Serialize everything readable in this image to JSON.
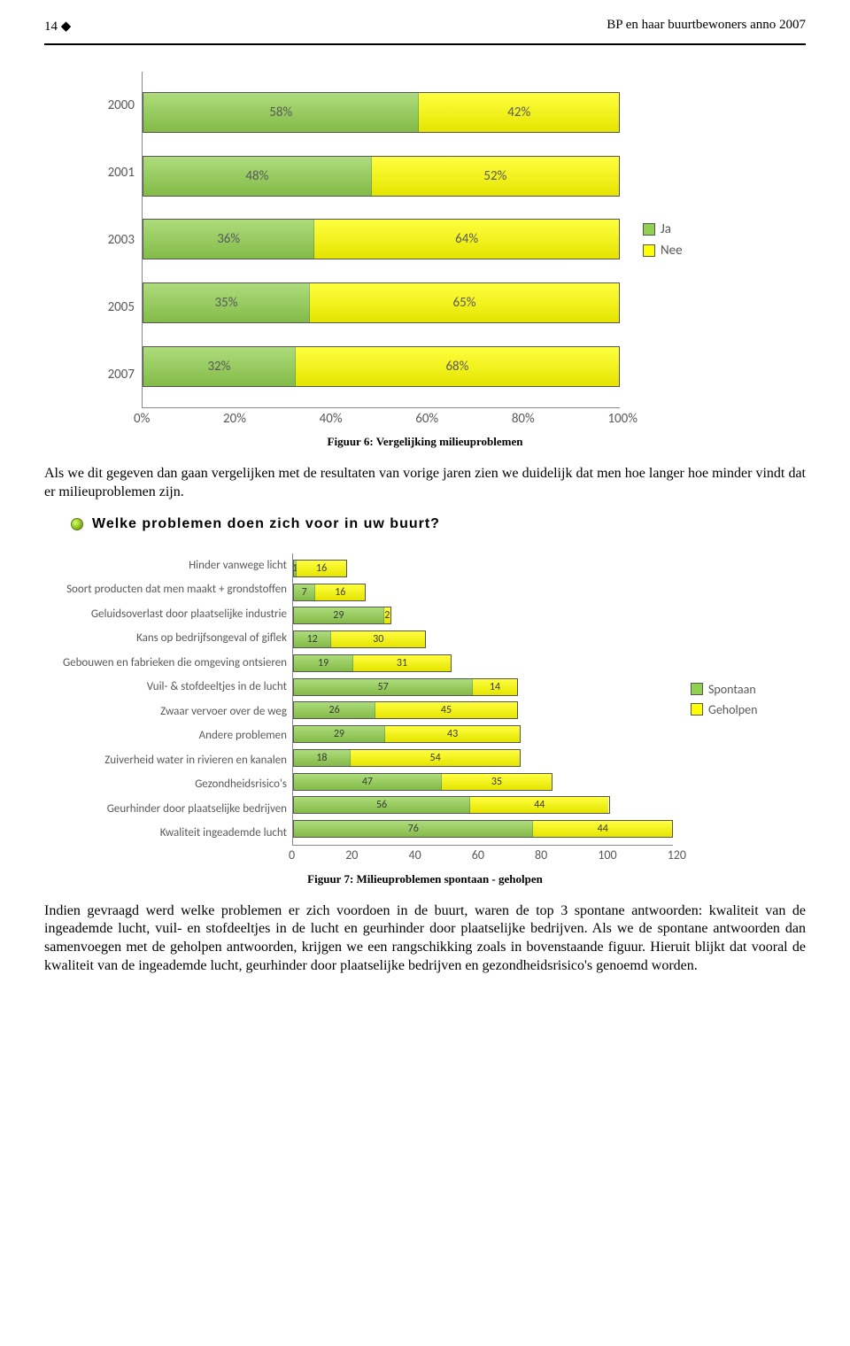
{
  "page": {
    "number_label": "14 ◆",
    "running_head": "BP en haar buurtbewoners anno 2007"
  },
  "chart1": {
    "type": "stacked-bar-horizontal",
    "xmax": 100,
    "xtick_step": 20,
    "xticks": [
      "0%",
      "20%",
      "40%",
      "60%",
      "80%",
      "100%"
    ],
    "categories": [
      "2000",
      "2001",
      "2003",
      "2005",
      "2007"
    ],
    "series": [
      {
        "name": "Ja",
        "color": "#92d050",
        "labels": [
          "58%",
          "48%",
          "36%",
          "35%",
          "32%"
        ],
        "values": [
          58,
          48,
          36,
          35,
          32
        ]
      },
      {
        "name": "Nee",
        "color": "#ffff00",
        "labels": [
          "42%",
          "52%",
          "64%",
          "65%",
          "68%"
        ],
        "values": [
          42,
          52,
          64,
          65,
          68
        ]
      }
    ],
    "caption": "Figuur 6: Vergelijking milieuproblemen"
  },
  "body_text": {
    "para1": "Als we dit gegeven dan gaan vergelijken met de resultaten van vorige jaren zien we duidelijk dat men hoe langer hoe minder vindt dat er milieuproblemen zijn.",
    "bullet_q": "Welke problemen doen zich voor in uw buurt?"
  },
  "chart2": {
    "type": "stacked-bar-horizontal",
    "xmax": 120,
    "xtick_step": 20,
    "xticks": [
      "0",
      "20",
      "40",
      "60",
      "80",
      "100",
      "120"
    ],
    "categories": [
      "Hinder vanwege licht",
      "Soort producten dat men maakt + grondstoffen",
      "Geluidsoverlast door plaatselijke industrie",
      "Kans op bedrijfsongeval of giflek",
      "Gebouwen en fabrieken die omgeving ontsieren",
      "Vuil- & stofdeeltjes in de lucht",
      "Zwaar vervoer over de weg",
      "Andere problemen",
      "Zuiverheid water in rivieren en kanalen",
      "Gezondheidsrisico's",
      "Geurhinder door plaatselijke bedrijven",
      "Kwaliteit ingeademde lucht"
    ],
    "series": [
      {
        "name": "Spontaan",
        "color": "#92d050",
        "values": [
          1,
          7,
          29,
          12,
          19,
          57,
          26,
          29,
          18,
          47,
          56,
          76
        ],
        "labels": [
          "1",
          "7",
          "29",
          "12",
          "19",
          "57",
          "26",
          "29",
          "18",
          "47",
          "56",
          "76"
        ]
      },
      {
        "name": "Geholpen",
        "color": "#ffff00",
        "values": [
          16,
          16,
          2,
          30,
          31,
          14,
          45,
          43,
          54,
          35,
          44,
          44
        ],
        "labels": [
          "16",
          "16",
          "2",
          "30",
          "31",
          "14",
          "45",
          "43",
          "54",
          "35",
          "44",
          "44"
        ]
      }
    ],
    "caption": "Figuur 7: Milieuproblemen spontaan - geholpen"
  },
  "body_text2": {
    "para2": "Indien gevraagd werd welke problemen er zich voordoen in de buurt, waren de top 3 spontane antwoorden: kwaliteit van de ingeademde lucht, vuil- en stofdeeltjes in de lucht en geurhinder door plaatselijke bedrijven. Als we de spontane antwoorden dan samenvoegen met de geholpen antwoorden, krijgen we een rangschikking zoals in bovenstaande figuur. Hieruit blijkt dat vooral de kwaliteit van de ingeademde lucht, geurhinder door plaatselijke bedrijven en gezondheidsrisico's genoemd worden."
  }
}
